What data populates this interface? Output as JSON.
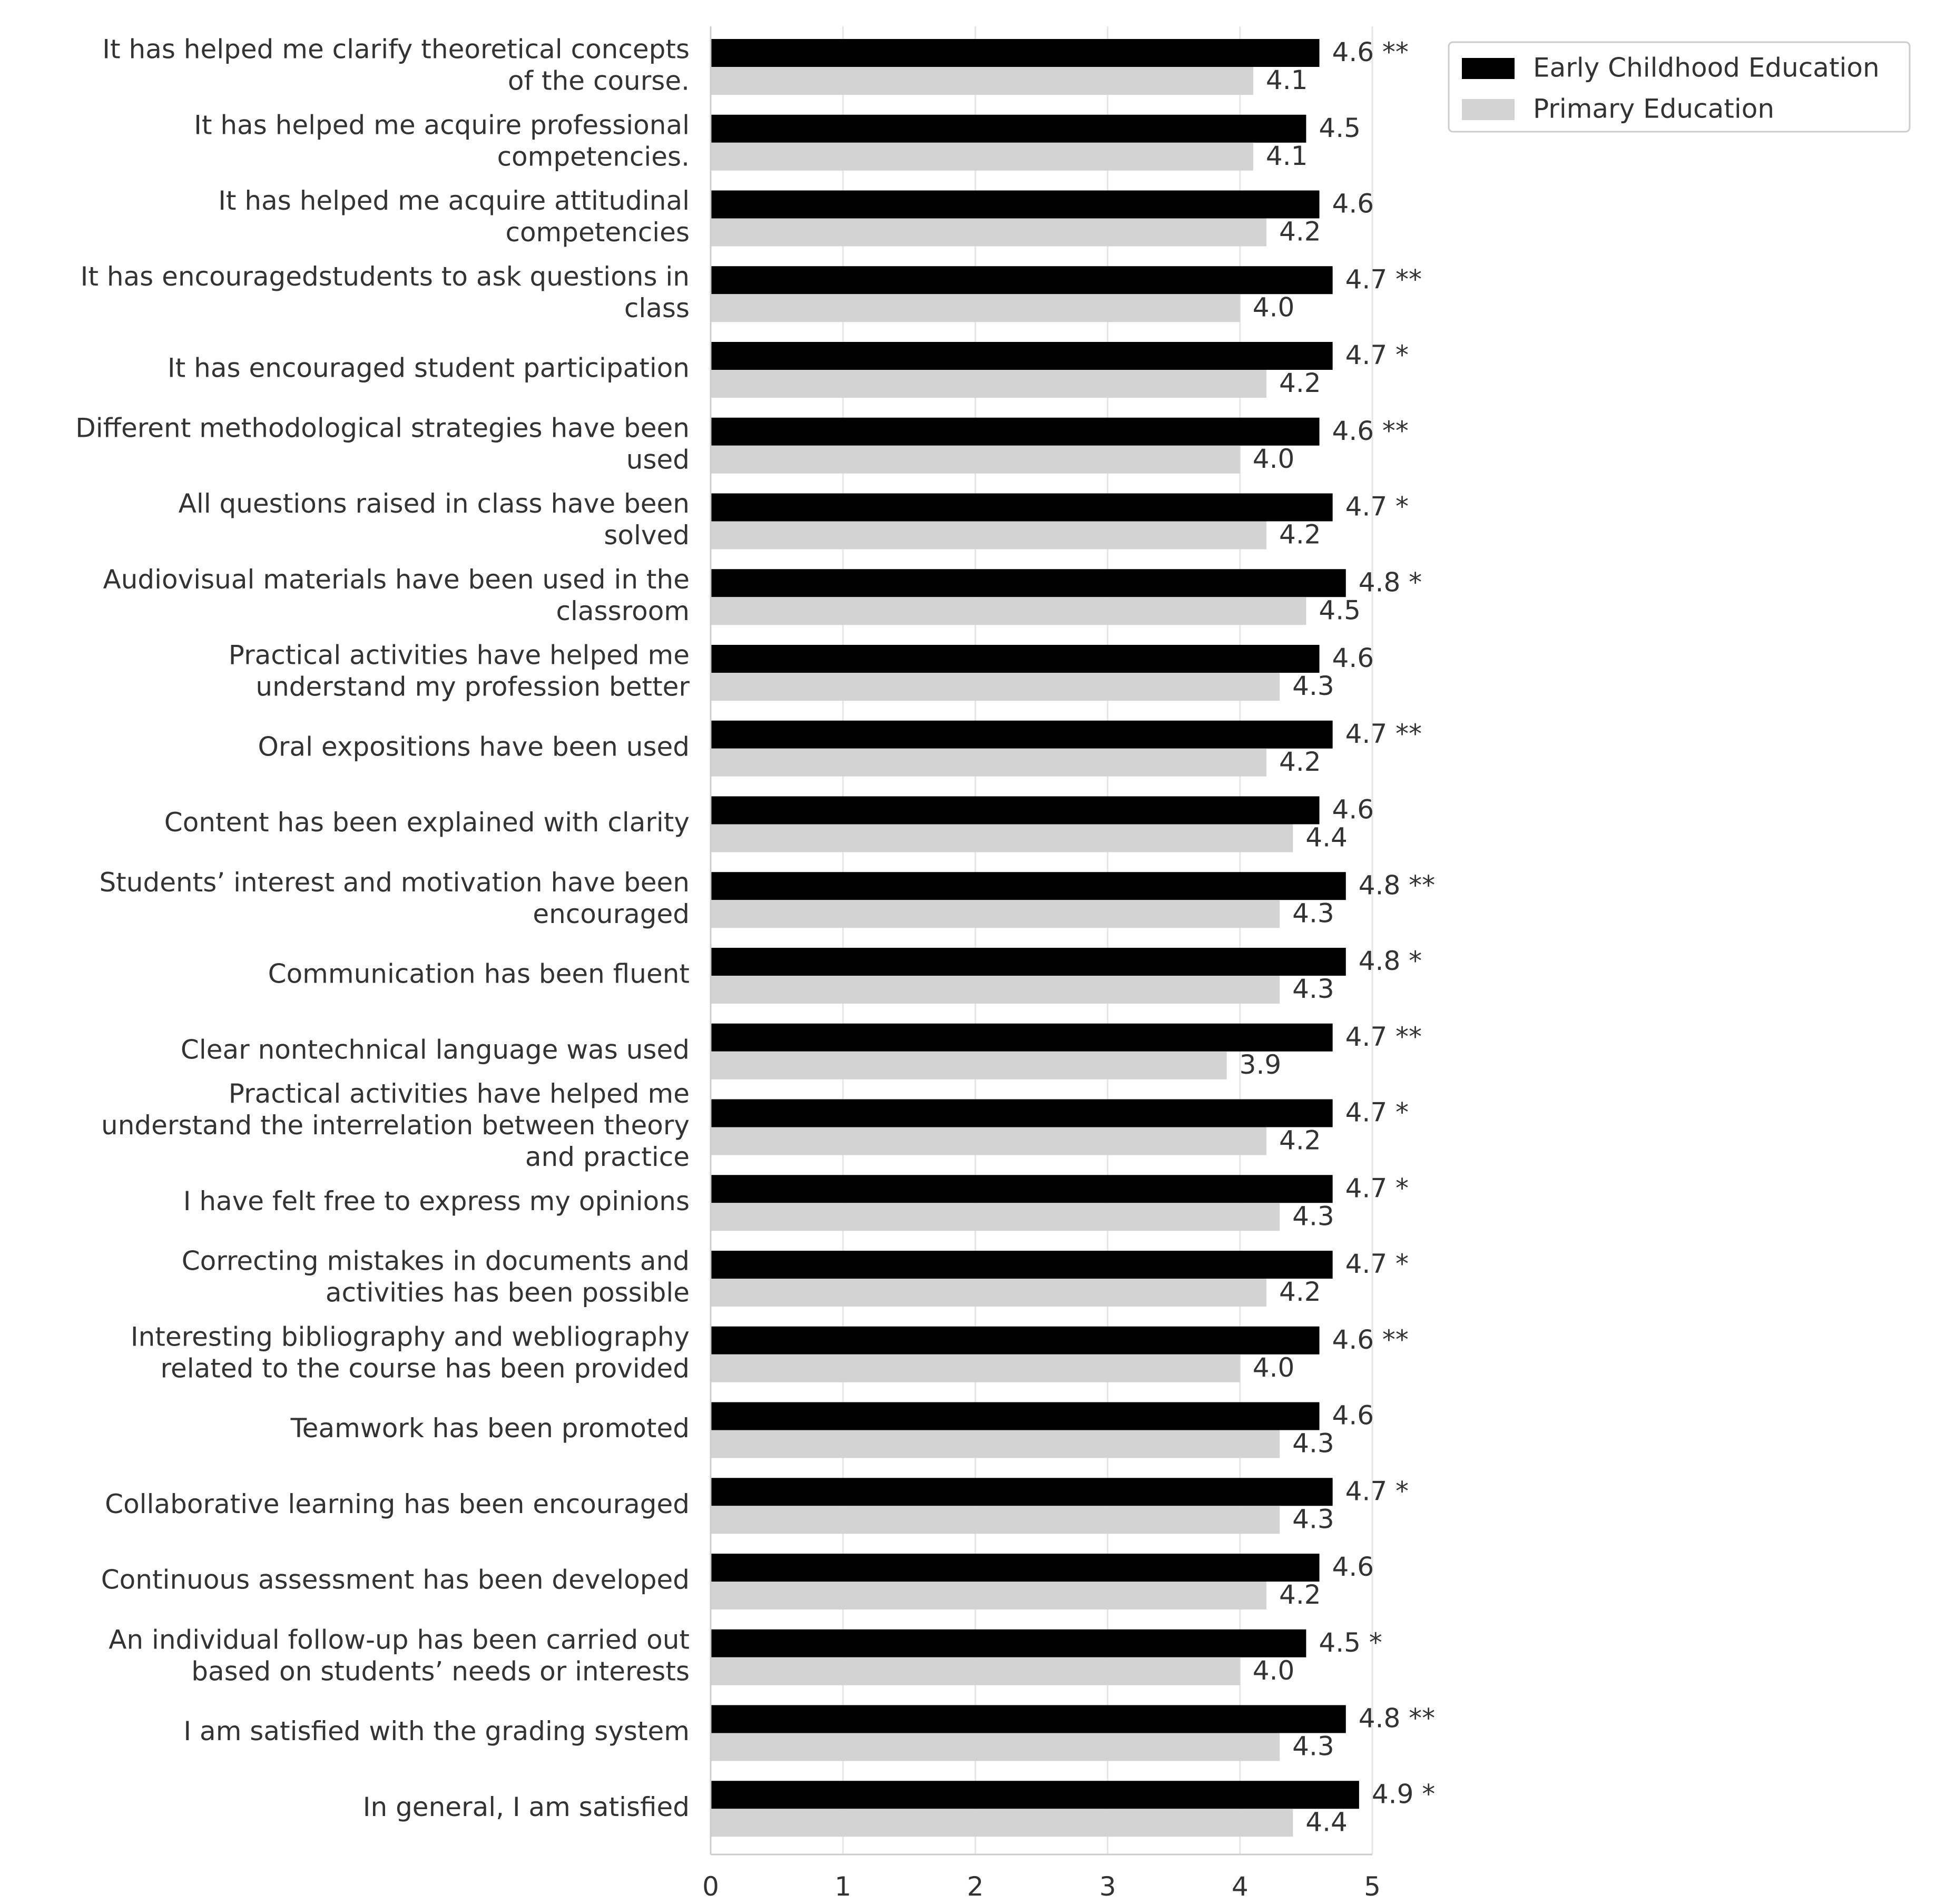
{
  "chart_data": {
    "type": "bar",
    "orientation": "horizontal",
    "title": "",
    "xlabel": "",
    "ylabel": "",
    "xlim": [
      0,
      5
    ],
    "xticks": [
      0,
      1,
      2,
      3,
      4,
      5
    ],
    "grid": "vertical gridlines",
    "legend_position": "top-right",
    "categories": [
      "It has helped me clarify theoretical concepts\nof the course.",
      "It has helped me acquire professional\ncompetencies.",
      "It has helped me acquire attitudinal\ncompetencies",
      "It has encouragedstudents to ask questions in\nclass",
      "It has encouraged student participation",
      "Different methodological strategies have been\nused",
      "All questions raised in class have been\nsolved",
      "Audiovisual materials have been used in the\nclassroom",
      "Practical activities have helped me\nunderstand my profession better",
      "Oral expositions have been used",
      "Content has been explained with clarity",
      "Students’ interest and motivation have been\nencouraged",
      "Communication has been fluent",
      "Clear nontechnical language was used",
      "Practical activities have helped me\nunderstand the interrelation between theory\nand practice",
      "I have felt free to express my opinions",
      "Correcting mistakes in documents and\nactivities has been possible",
      "Interesting bibliography and webliography\nrelated to the course has been provided",
      "Teamwork has been promoted",
      "Collaborative learning has been encouraged",
      "Continuous assessment has been developed",
      "An individual follow-up has been carried out\nbased on students’ needs or interests",
      "I am satisfied with the grading system",
      "In general, I am satisfied"
    ],
    "series": [
      {
        "name": "Early Childhood Education",
        "color": "#000000",
        "values": [
          4.6,
          4.5,
          4.6,
          4.7,
          4.7,
          4.6,
          4.7,
          4.8,
          4.6,
          4.7,
          4.6,
          4.8,
          4.8,
          4.7,
          4.7,
          4.7,
          4.7,
          4.6,
          4.6,
          4.7,
          4.6,
          4.5,
          4.8,
          4.9
        ],
        "labels": [
          "4.6 **",
          "4.5",
          "4.6",
          "4.7 **",
          "4.7 *",
          "4.6 **",
          "4.7 *",
          "4.8 *",
          "4.6",
          "4.7 **",
          "4.6",
          "4.8 **",
          "4.8 *",
          "4.7 **",
          "4.7 *",
          "4.7 *",
          "4.7 *",
          "4.6 **",
          "4.6",
          "4.7 *",
          "4.6",
          "4.5 *",
          "4.8 **",
          "4.9 *"
        ]
      },
      {
        "name": "Primary Education",
        "color": "#d3d3d3",
        "values": [
          4.1,
          4.1,
          4.2,
          4.0,
          4.2,
          4.0,
          4.2,
          4.5,
          4.3,
          4.2,
          4.4,
          4.3,
          4.3,
          3.9,
          4.2,
          4.3,
          4.2,
          4.0,
          4.3,
          4.3,
          4.2,
          4.0,
          4.3,
          4.4
        ],
        "labels": [
          "4.1",
          "4.1",
          "4.2",
          "4.0",
          "4.2",
          "4.0",
          "4.2",
          "4.5",
          "4.3",
          "4.2",
          "4.4",
          "4.3",
          "4.3",
          "3.9",
          "4.2",
          "4.3",
          "4.2",
          "4.0",
          "4.3",
          "4.3",
          "4.2",
          "4.0",
          "4.3",
          "4.4"
        ]
      }
    ]
  }
}
